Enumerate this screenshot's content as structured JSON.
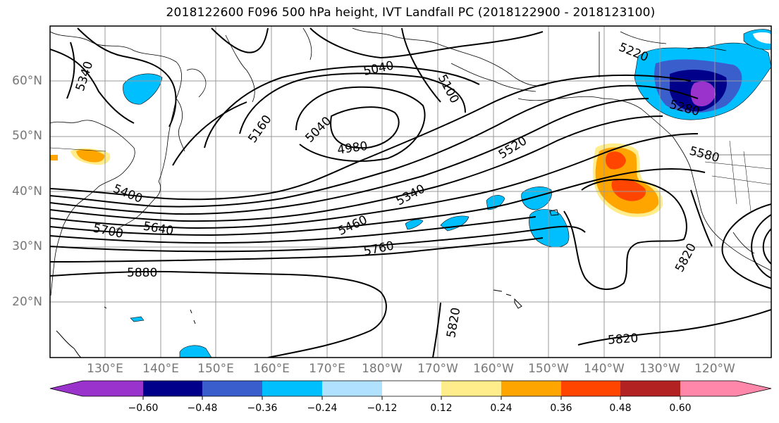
{
  "title": "2018122600 F096 500 hPa height, IVT Landfall PC (2018122900 - 2018123100)",
  "latitude_labels": [
    "60°N",
    "50°N",
    "40°N",
    "30°N",
    "20°N"
  ],
  "longitude_labels": [
    "130°E",
    "140°E",
    "150°E",
    "160°E",
    "170°E",
    "180°W",
    "170°W",
    "160°W",
    "150°W",
    "140°W",
    "130°W",
    "120°W"
  ],
  "contour_labels": [
    "5340",
    "5040",
    "5100",
    "5160",
    "5040",
    "4980",
    "5520",
    "5220",
    "5280",
    "5580",
    "5400",
    "5340",
    "5460",
    "5640",
    "5700",
    "5760",
    "5880",
    "5820",
    "5820",
    "5820"
  ],
  "colorbar": {
    "colors": [
      "#9933cc",
      "#00008b",
      "#3a5fcd",
      "#00bfff",
      "#b0e2ff",
      "#ffffff",
      "#ffec8b",
      "#ffa500",
      "#ff4500",
      "#b22222",
      "#ff88aa"
    ],
    "tick_labels": [
      "−0.60",
      "−0.48",
      "−0.36",
      "−0.24",
      "−0.12",
      "0.12",
      "0.24",
      "0.36",
      "0.48",
      "0.60"
    ]
  }
}
